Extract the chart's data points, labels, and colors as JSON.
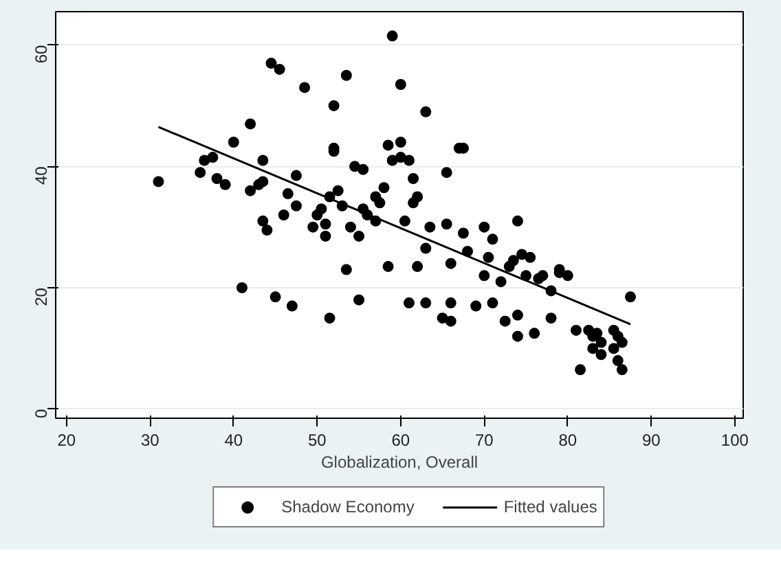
{
  "chart_data": {
    "type": "scatter",
    "xlabel": "Globalization, Overall",
    "xlim": [
      18.7,
      101
    ],
    "ylim": [
      -1.5,
      65.5
    ],
    "xticks": [
      20,
      30,
      40,
      50,
      60,
      70,
      80,
      90,
      100
    ],
    "yticks": [
      0,
      20,
      40,
      60
    ],
    "grid": "y",
    "legend": "bottom",
    "marker": "circle",
    "series": [
      {
        "name": "Shadow Economy",
        "color": "#000000",
        "x": [
          31,
          36,
          36.5,
          37.5,
          38,
          39,
          40,
          41,
          42,
          42,
          43,
          43.5,
          43.5,
          43.5,
          44,
          44.5,
          45,
          45.5,
          46,
          46.5,
          47,
          47.5,
          47.5,
          48.5,
          49.5,
          50,
          50.5,
          51,
          51,
          51.5,
          51.5,
          52,
          52,
          52,
          52.5,
          53,
          53.5,
          53.5,
          54,
          54.5,
          55,
          55,
          55.5,
          55.5,
          56,
          57,
          57,
          57.5,
          58,
          58.5,
          58.5,
          59,
          59,
          60,
          60,
          60,
          60.5,
          61,
          61,
          61.5,
          61.5,
          62,
          62,
          63,
          63,
          63,
          63.5,
          65,
          65.5,
          65.5,
          66,
          66,
          66,
          67,
          67.5,
          67.5,
          68,
          69,
          70,
          70,
          70.5,
          71,
          71,
          72,
          72.5,
          73,
          73.5,
          74,
          74,
          74,
          74.5,
          75,
          75.5,
          76,
          76.5,
          77,
          78,
          78,
          79,
          79,
          80,
          81,
          81.5,
          82.5,
          83,
          83,
          83.5,
          84,
          84,
          85.5,
          85.5,
          86,
          86,
          86.5,
          86.5,
          87.5
        ],
        "values": [
          37.5,
          39,
          41,
          41.5,
          38,
          37,
          44,
          20,
          47,
          36,
          37,
          41,
          37.5,
          31,
          29.5,
          57,
          18.5,
          56,
          32,
          35.5,
          17,
          38.5,
          33.5,
          53,
          30,
          32,
          33,
          30.5,
          28.5,
          35,
          15,
          42.5,
          43,
          50,
          36,
          33.5,
          23,
          55,
          30,
          40,
          18,
          28.5,
          33,
          39.5,
          32,
          31,
          35,
          34,
          36.5,
          23.5,
          43.5,
          61.5,
          41,
          53.5,
          41.5,
          44,
          31,
          41,
          17.5,
          38,
          34,
          35,
          23.5,
          17.5,
          26.5,
          49,
          30,
          15,
          39,
          30.5,
          17.5,
          24,
          14.5,
          43,
          43,
          29,
          26,
          17,
          30,
          22,
          25,
          28,
          17.5,
          21,
          14.5,
          23.5,
          24.5,
          31,
          12,
          15.5,
          25.5,
          22,
          25,
          12.5,
          21.5,
          22,
          15,
          19.5,
          22.5,
          23,
          22,
          13,
          6.5,
          13,
          12,
          10,
          12.5,
          11,
          9,
          13,
          10,
          8,
          12,
          11,
          6.5,
          18.5
        ]
      },
      {
        "name": "Fitted values",
        "type": "line",
        "color": "#000000",
        "line_style": "solid",
        "marker": "none",
        "x": [
          31,
          87.5
        ],
        "values": [
          46.5,
          14
        ]
      }
    ]
  }
}
